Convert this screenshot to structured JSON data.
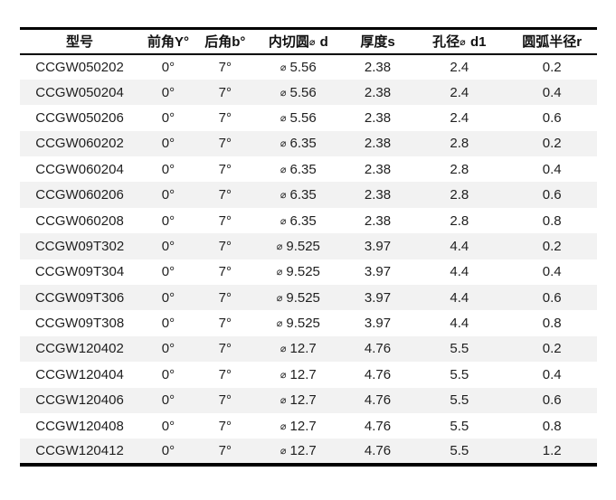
{
  "colors": {
    "background": "#ffffff",
    "border": "#000000",
    "zebra_row": "#f2f2f2",
    "header_text": "#111111",
    "body_text": "#1f1f1f"
  },
  "diameter_symbol": "⌀",
  "table": {
    "columns": [
      {
        "key": "model",
        "label": "型号",
        "width": "20.7%",
        "value_prefix": ""
      },
      {
        "key": "rake-angle",
        "label": "前角Y°",
        "width": "10.0%",
        "value_prefix": ""
      },
      {
        "key": "clearance-angle",
        "label": "后角b°",
        "width": "9.7%",
        "value_prefix": ""
      },
      {
        "key": "inscribed-circle-d",
        "label": "内切圆⌀ d",
        "width": "15.7%",
        "value_prefix": "⌀"
      },
      {
        "key": "thickness-s",
        "label": "厚度s",
        "width": "11.8%",
        "value_prefix": ""
      },
      {
        "key": "hole-diameter-d1",
        "label": "孔径⌀ d1",
        "width": "16.5%",
        "value_prefix": "⌀-hidden"
      },
      {
        "key": "corner-radius-r",
        "label": "圆弧半径r",
        "width": "15.6%",
        "value_prefix": ""
      }
    ],
    "rows": [
      [
        "CCGW050202",
        "0°",
        "7°",
        "5.56",
        "2.38",
        "2.4",
        "0.2"
      ],
      [
        "CCGW050204",
        "0°",
        "7°",
        "5.56",
        "2.38",
        "2.4",
        "0.4"
      ],
      [
        "CCGW050206",
        "0°",
        "7°",
        "5.56",
        "2.38",
        "2.4",
        "0.6"
      ],
      [
        "CCGW060202",
        "0°",
        "7°",
        "6.35",
        "2.38",
        "2.8",
        "0.2"
      ],
      [
        "CCGW060204",
        "0°",
        "7°",
        "6.35",
        "2.38",
        "2.8",
        "0.4"
      ],
      [
        "CCGW060206",
        "0°",
        "7°",
        "6.35",
        "2.38",
        "2.8",
        "0.6"
      ],
      [
        "CCGW060208",
        "0°",
        "7°",
        "6.35",
        "2.38",
        "2.8",
        "0.8"
      ],
      [
        "CCGW09T302",
        "0°",
        "7°",
        "9.525",
        "3.97",
        "4.4",
        "0.2"
      ],
      [
        "CCGW09T304",
        "0°",
        "7°",
        "9.525",
        "3.97",
        "4.4",
        "0.4"
      ],
      [
        "CCGW09T306",
        "0°",
        "7°",
        "9.525",
        "3.97",
        "4.4",
        "0.6"
      ],
      [
        "CCGW09T308",
        "0°",
        "7°",
        "9.525",
        "3.97",
        "4.4",
        "0.8"
      ],
      [
        "CCGW120402",
        "0°",
        "7°",
        "12.7",
        "4.76",
        "5.5",
        "0.2"
      ],
      [
        "CCGW120404",
        "0°",
        "7°",
        "12.7",
        "4.76",
        "5.5",
        "0.4"
      ],
      [
        "CCGW120406",
        "0°",
        "7°",
        "12.7",
        "4.76",
        "5.5",
        "0.6"
      ],
      [
        "CCGW120408",
        "0°",
        "7°",
        "12.7",
        "4.76",
        "5.5",
        "0.8"
      ],
      [
        "CCGW120412",
        "0°",
        "7°",
        "12.7",
        "4.76",
        "5.5",
        "1.2"
      ]
    ]
  }
}
